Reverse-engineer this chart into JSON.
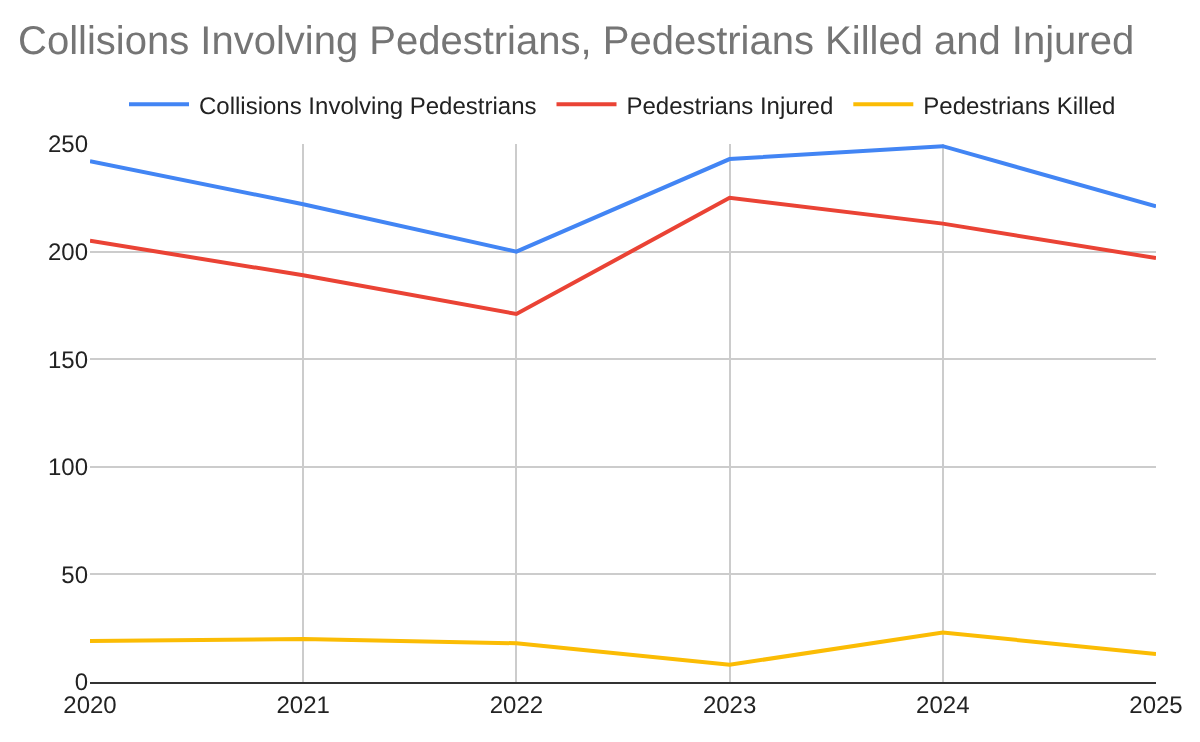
{
  "chart_data": {
    "type": "line",
    "title": "Collisions Involving Pedestrians, Pedestrians Killed and Injured",
    "x": [
      2020,
      2021,
      2022,
      2023,
      2024,
      2025
    ],
    "xlim": [
      2020,
      2025
    ],
    "xticks": [
      2020,
      2021,
      2022,
      2023,
      2024,
      2025
    ],
    "ylim": [
      0,
      250
    ],
    "yticks": [
      0,
      50,
      100,
      150,
      200,
      250
    ],
    "grid": true,
    "legend": "top",
    "marker": "none",
    "line_style": "solid",
    "series": [
      {
        "name": "Collisions Involving Pedestrians",
        "color": "#4285f4",
        "values": [
          242,
          222,
          200,
          243,
          249,
          221
        ]
      },
      {
        "name": "Pedestrians Injured",
        "color": "#ea4335",
        "values": [
          205,
          189,
          171,
          225,
          213,
          197
        ]
      },
      {
        "name": "Pedestrians Killed",
        "color": "#fbbc04",
        "values": [
          19,
          20,
          18,
          8,
          23,
          13
        ]
      }
    ]
  }
}
